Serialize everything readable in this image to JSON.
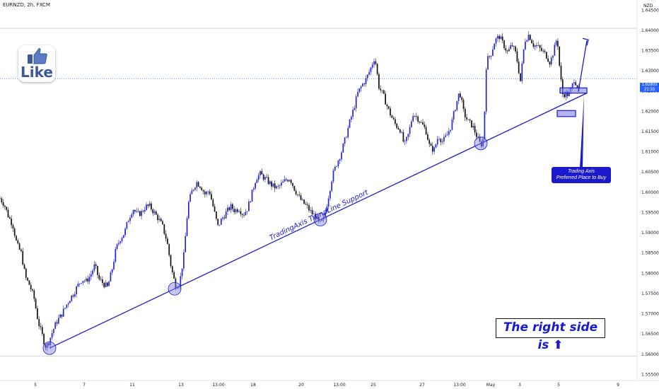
{
  "header": {
    "symbol": "EURNZD, 2h, FXCM"
  },
  "price_axis": {
    "currency": "NZD",
    "labels": [
      "1.64500",
      "1.64000",
      "1.63500",
      "1.63000",
      "1.62500",
      "1.62000",
      "1.61500",
      "1.61000",
      "1.60500",
      "1.60000",
      "1.59500",
      "1.59000",
      "1.58500",
      "1.58000",
      "1.57500",
      "1.57000",
      "1.56500",
      "1.56000",
      "1.55500"
    ],
    "current_price": "1.62803",
    "countdown": "21:33"
  },
  "time_axis": {
    "labels": [
      "5",
      "7",
      "11",
      "13",
      "13:00",
      "18",
      "20",
      "13:00",
      "25",
      "27",
      "13:00",
      "May",
      "3",
      "5",
      "9"
    ]
  },
  "annotations": {
    "trendline_label": "TradingAxis TrendLine Support",
    "callout_line1": "Trading Axis",
    "callout_line2": "Preferred Place to Buy",
    "banner": "The right side is ⬆",
    "like_text": "Like"
  },
  "colors": {
    "bull": "#2424d4",
    "bear": "#111111",
    "trendline": "#1a1acc",
    "touch_circle": "#8080ee",
    "price_line": "#2962ff"
  },
  "chart_data": {
    "type": "candlestick",
    "ylim": [
      1.5535,
      1.6475
    ],
    "x_labels": [
      "5",
      "7",
      "11",
      "13",
      "13:00",
      "18",
      "20",
      "13:00",
      "25",
      "27",
      "13:00",
      "May",
      "3",
      "5",
      "9"
    ],
    "path": [
      [
        0,
        1.5985
      ],
      [
        6,
        1.597
      ],
      [
        12,
        1.594
      ],
      [
        18,
        1.592
      ],
      [
        24,
        1.587
      ],
      [
        30,
        1.585
      ],
      [
        36,
        1.579
      ],
      [
        42,
        1.577
      ],
      [
        48,
        1.574
      ],
      [
        54,
        1.568
      ],
      [
        60,
        1.5645
      ],
      [
        64,
        1.562
      ],
      [
        68,
        1.5625
      ],
      [
        74,
        1.5655
      ],
      [
        80,
        1.568
      ],
      [
        86,
        1.5695
      ],
      [
        92,
        1.5715
      ],
      [
        98,
        1.5735
      ],
      [
        104,
        1.575
      ],
      [
        110,
        1.577
      ],
      [
        116,
        1.5785
      ],
      [
        122,
        1.578
      ],
      [
        128,
        1.5795
      ],
      [
        134,
        1.582
      ],
      [
        140,
        1.5785
      ],
      [
        146,
        1.5775
      ],
      [
        152,
        1.5765
      ],
      [
        158,
        1.5805
      ],
      [
        164,
        1.586
      ],
      [
        170,
        1.5885
      ],
      [
        176,
        1.59
      ],
      [
        182,
        1.5935
      ],
      [
        188,
        1.596
      ],
      [
        194,
        1.5945
      ],
      [
        200,
        1.595
      ],
      [
        206,
        1.5965
      ],
      [
        212,
        1.5965
      ],
      [
        218,
        1.595
      ],
      [
        224,
        1.5935
      ],
      [
        230,
        1.5915
      ],
      [
        236,
        1.588
      ],
      [
        242,
        1.5815
      ],
      [
        248,
        1.577
      ],
      [
        254,
        1.5775
      ],
      [
        260,
        1.5845
      ],
      [
        266,
        1.597
      ],
      [
        272,
        1.6005
      ],
      [
        278,
        1.6025
      ],
      [
        284,
        1.6015
      ],
      [
        290,
        1.5995
      ],
      [
        296,
        1.6005
      ],
      [
        302,
        1.596
      ],
      [
        308,
        1.5915
      ],
      [
        314,
        1.5935
      ],
      [
        320,
        1.595
      ],
      [
        326,
        1.5965
      ],
      [
        332,
        1.5955
      ],
      [
        338,
        1.596
      ],
      [
        344,
        1.5945
      ],
      [
        350,
        1.596
      ],
      [
        356,
        1.5995
      ],
      [
        362,
        1.6035
      ],
      [
        368,
        1.6045
      ],
      [
        374,
        1.6035
      ],
      [
        380,
        1.6025
      ],
      [
        386,
        1.6015
      ],
      [
        392,
        1.601
      ],
      [
        398,
        1.602
      ],
      [
        404,
        1.603
      ],
      [
        410,
        1.6035
      ],
      [
        416,
        1.601
      ],
      [
        422,
        1.599
      ],
      [
        428,
        1.5975
      ],
      [
        434,
        1.5965
      ],
      [
        440,
        1.595
      ],
      [
        446,
        1.594
      ],
      [
        452,
        1.592
      ],
      [
        458,
        1.5935
      ],
      [
        464,
        1.5985
      ],
      [
        470,
        1.604
      ],
      [
        476,
        1.607
      ],
      [
        482,
        1.6095
      ],
      [
        488,
        1.613
      ],
      [
        494,
        1.617
      ],
      [
        500,
        1.6205
      ],
      [
        506,
        1.6245
      ],
      [
        512,
        1.6265
      ],
      [
        518,
        1.628
      ],
      [
        524,
        1.6305
      ],
      [
        530,
        1.6335
      ],
      [
        536,
        1.626
      ],
      [
        542,
        1.624
      ],
      [
        548,
        1.621
      ],
      [
        554,
        1.6185
      ],
      [
        560,
        1.6165
      ],
      [
        566,
        1.6155
      ],
      [
        572,
        1.6115
      ],
      [
        578,
        1.6145
      ],
      [
        584,
        1.6195
      ],
      [
        590,
        1.6185
      ],
      [
        596,
        1.617
      ],
      [
        602,
        1.6155
      ],
      [
        608,
        1.611
      ],
      [
        614,
        1.6105
      ],
      [
        620,
        1.614
      ],
      [
        626,
        1.6125
      ],
      [
        632,
        1.614
      ],
      [
        638,
        1.6165
      ],
      [
        644,
        1.621
      ],
      [
        650,
        1.625
      ],
      [
        656,
        1.6195
      ],
      [
        662,
        1.6175
      ],
      [
        668,
        1.6165
      ],
      [
        674,
        1.614
      ],
      [
        680,
        1.6115
      ],
      [
        684,
        1.6135
      ],
      [
        688,
        1.6325
      ],
      [
        694,
        1.634
      ],
      [
        700,
        1.6375
      ],
      [
        706,
        1.6385
      ],
      [
        712,
        1.6365
      ],
      [
        718,
        1.6345
      ],
      [
        724,
        1.6365
      ],
      [
        730,
        1.634
      ],
      [
        736,
        1.6275
      ],
      [
        742,
        1.6375
      ],
      [
        748,
        1.639
      ],
      [
        754,
        1.6365
      ],
      [
        760,
        1.636
      ],
      [
        766,
        1.635
      ],
      [
        772,
        1.634
      ],
      [
        778,
        1.632
      ],
      [
        784,
        1.6355
      ],
      [
        788,
        1.6385
      ],
      [
        792,
        1.6295
      ],
      [
        796,
        1.624
      ],
      [
        800,
        1.6245
      ],
      [
        804,
        1.624
      ],
      [
        808,
        1.6255
      ],
      [
        812,
        1.628
      ],
      [
        816,
        1.6265
      ],
      [
        820,
        1.625
      ]
    ],
    "trendline": {
      "from": [
        "5",
        1.5615
      ],
      "to": [
        "5",
        1.6245
      ],
      "label": "TradingAxis TrendLine Support"
    },
    "trendline_touches": [
      1.5615,
      1.5755,
      1.5925,
      1.611
    ],
    "buy_zone": [
      1.6245,
      1.6258
    ],
    "lower_zone": [
      1.6187,
      1.6202
    ],
    "projection_target": 1.6375,
    "price_line": 1.62803,
    "resistance_line": 1.6405,
    "support_line": 1.5595
  }
}
